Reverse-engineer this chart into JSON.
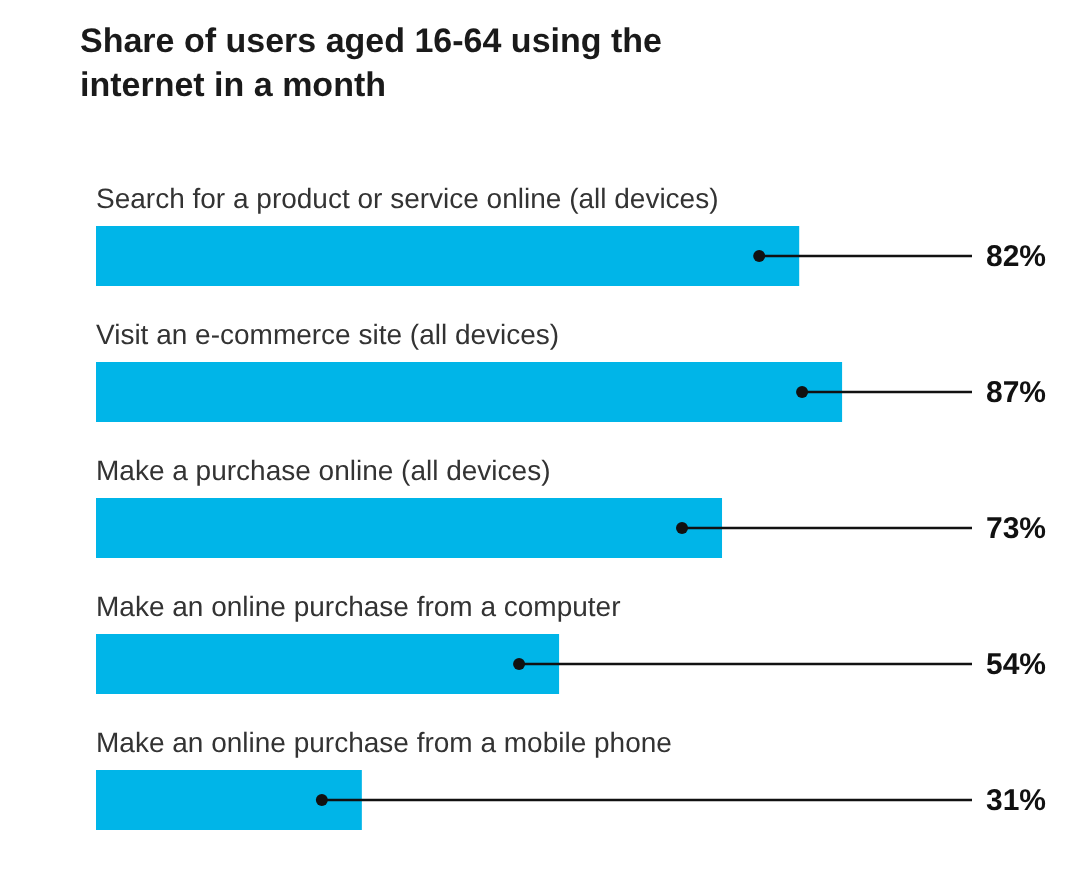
{
  "chart_data": {
    "type": "bar",
    "orientation": "horizontal",
    "title": "Share of users aged 16-64 using the internet in a month",
    "categories": [
      "Search for a product or service online (all devices)",
      "Visit an e-commerce site (all devices)",
      "Make a purchase online (all devices)",
      "Make an online purchase from a computer",
      "Make an online purchase from a mobile phone"
    ],
    "values": [
      82,
      87,
      73,
      54,
      31
    ],
    "value_labels": [
      "82%",
      "87%",
      "73%",
      "54%",
      "31%"
    ],
    "color": "#00b5e8"
  }
}
